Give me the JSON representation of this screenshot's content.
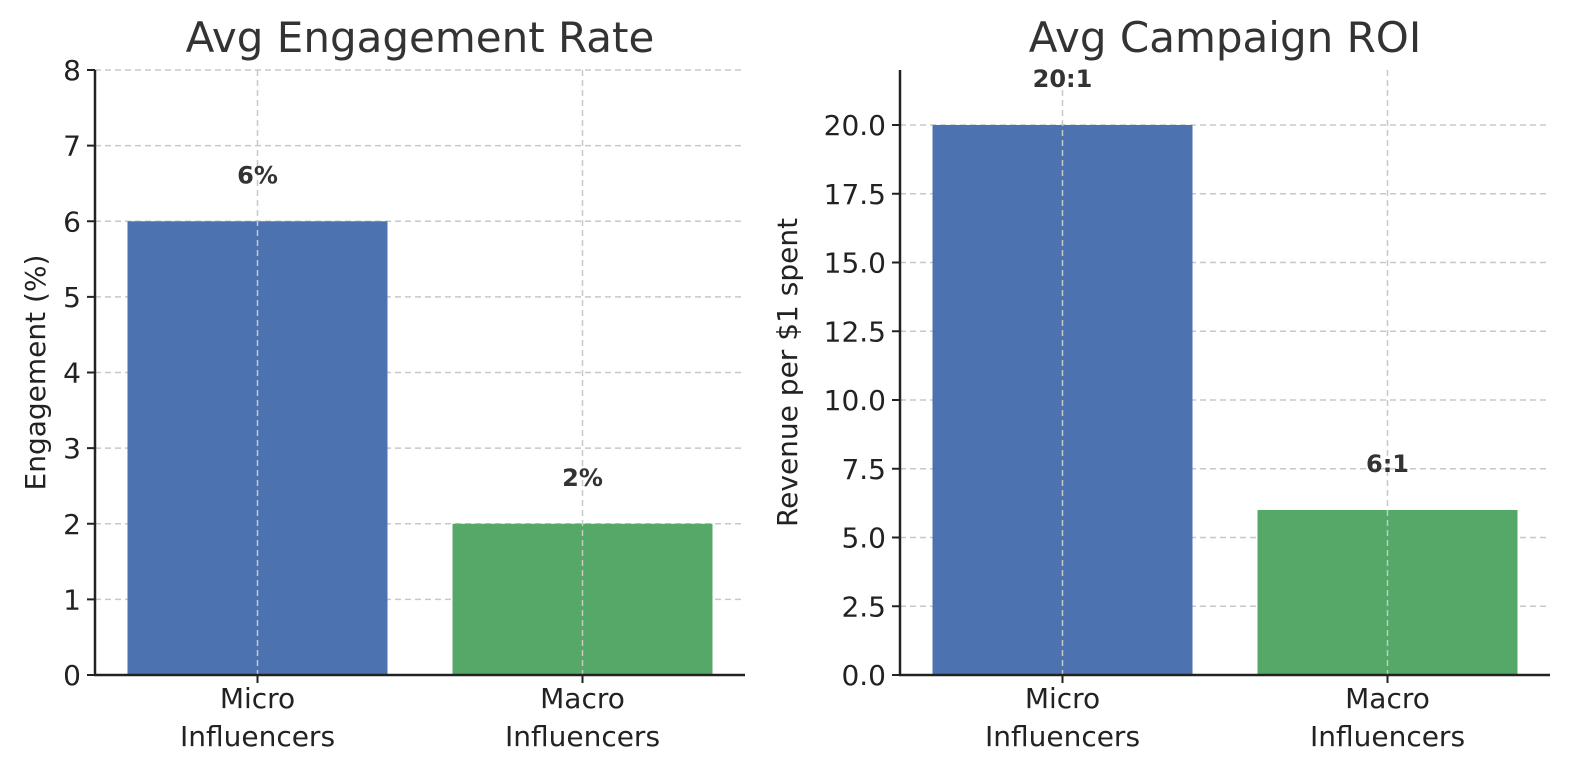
{
  "chart_data": [
    {
      "type": "bar",
      "title": "Avg Engagement Rate",
      "xlabel": "",
      "ylabel": "Engagement (%)",
      "categories": [
        [
          "Micro",
          "Influencers"
        ],
        [
          "Macro",
          "Influencers"
        ]
      ],
      "values": [
        6,
        2
      ],
      "data_labels": [
        "6%",
        "2%"
      ],
      "colors": [
        "#4c72b0",
        "#55a868"
      ],
      "ylim": [
        0,
        8
      ],
      "yticks": [
        0,
        1,
        2,
        3,
        4,
        5,
        6,
        7,
        8
      ],
      "ytick_labels": [
        "0",
        "1",
        "2",
        "3",
        "4",
        "5",
        "6",
        "7",
        "8"
      ],
      "grid": true
    },
    {
      "type": "bar",
      "title": "Avg Campaign ROI",
      "xlabel": "",
      "ylabel": "Revenue per $1 spent",
      "categories": [
        [
          "Micro",
          "Influencers"
        ],
        [
          "Macro",
          "Influencers"
        ]
      ],
      "values": [
        20,
        6
      ],
      "data_labels": [
        "20:1",
        "6:1"
      ],
      "colors": [
        "#4c72b0",
        "#55a868"
      ],
      "ylim": [
        0,
        22
      ],
      "yticks": [
        0,
        2.5,
        5,
        7.5,
        10,
        12.5,
        15,
        17.5,
        20
      ],
      "ytick_labels": [
        "0.0",
        "2.5",
        "5.0",
        "7.5",
        "10.0",
        "12.5",
        "15.0",
        "17.5",
        "20.0"
      ],
      "grid": true
    }
  ]
}
